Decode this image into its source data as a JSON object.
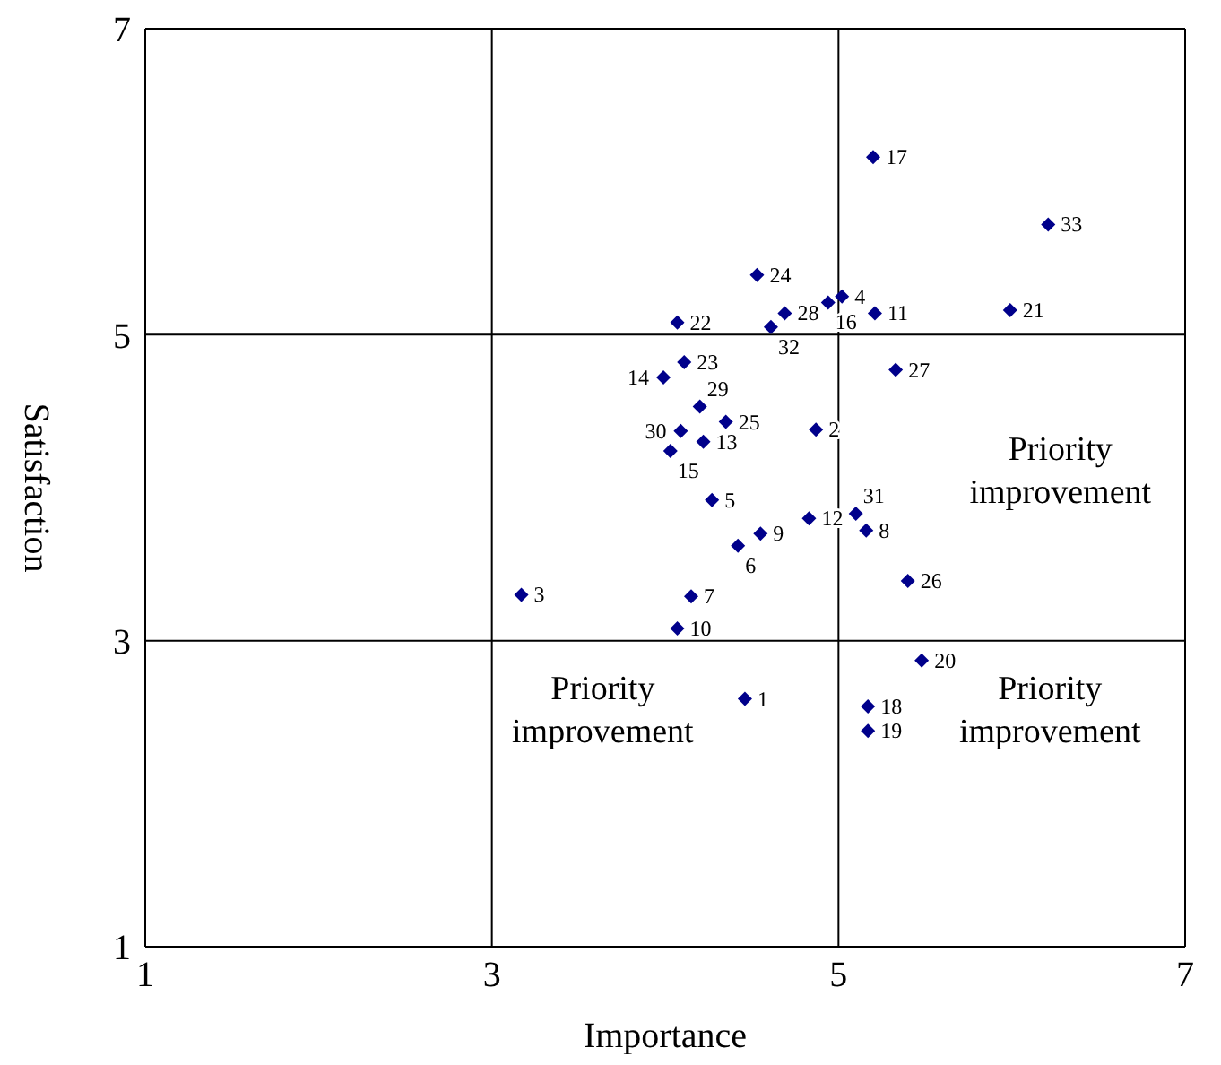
{
  "chart_data": {
    "type": "scatter",
    "xlabel": "Importance",
    "ylabel": "Satisfaction",
    "xlim": [
      1,
      7
    ],
    "ylim": [
      1,
      7
    ],
    "xticks": [
      1,
      3,
      5,
      7
    ],
    "yticks": [
      1,
      3,
      5,
      7
    ],
    "grid": true,
    "marker": "diamond",
    "series": [
      {
        "color": "#00008b",
        "x": [
          4.46,
          4.87,
          3.17,
          5.02,
          4.27,
          4.42,
          4.15,
          5.16,
          4.55,
          4.07,
          5.21,
          4.83,
          4.22,
          3.99,
          4.03,
          4.94,
          5.2,
          5.17,
          5.17,
          5.48,
          5.99,
          4.07,
          4.11,
          4.53,
          4.35,
          5.4,
          5.33,
          4.69,
          4.2,
          4.09,
          5.1,
          4.61,
          6.21
        ],
        "values": [
          2.62,
          4.38,
          3.3,
          5.25,
          3.92,
          3.62,
          3.29,
          3.72,
          3.7,
          3.08,
          5.14,
          3.8,
          4.3,
          4.72,
          4.24,
          5.21,
          6.16,
          2.57,
          2.41,
          2.87,
          5.16,
          5.08,
          4.82,
          5.39,
          4.43,
          3.39,
          4.77,
          5.14,
          4.53,
          4.37,
          3.83,
          5.05,
          5.72
        ]
      }
    ],
    "annotations": [
      "Priority improvement",
      "Priority improvement",
      "Priority improvement",
      {
        "text": "1",
        "x": 4.46,
        "y": 2.62
      },
      {
        "text": "2",
        "x": 4.87,
        "y": 4.38
      },
      {
        "text": "3",
        "x": 3.17,
        "y": 3.3
      },
      {
        "text": "4",
        "x": 5.02,
        "y": 5.25
      },
      {
        "text": "5",
        "x": 4.27,
        "y": 3.92
      },
      {
        "text": "6",
        "x": 4.42,
        "y": 3.62
      },
      {
        "text": "7",
        "x": 4.15,
        "y": 3.29
      },
      {
        "text": "8",
        "x": 5.16,
        "y": 3.72
      },
      {
        "text": "9",
        "x": 4.55,
        "y": 3.7
      },
      {
        "text": "10",
        "x": 4.07,
        "y": 3.08
      },
      {
        "text": "11",
        "x": 5.21,
        "y": 5.14
      },
      {
        "text": "12",
        "x": 4.83,
        "y": 3.8
      },
      {
        "text": "13",
        "x": 4.22,
        "y": 4.3
      },
      {
        "text": "14",
        "x": 3.99,
        "y": 4.72
      },
      {
        "text": "15",
        "x": 4.03,
        "y": 4.24
      },
      {
        "text": "16",
        "x": 4.94,
        "y": 5.21
      },
      {
        "text": "17",
        "x": 5.2,
        "y": 6.16
      },
      {
        "text": "18",
        "x": 5.17,
        "y": 2.57
      },
      {
        "text": "19",
        "x": 5.17,
        "y": 2.41
      },
      {
        "text": "20",
        "x": 5.48,
        "y": 2.87
      },
      {
        "text": "21",
        "x": 5.99,
        "y": 5.16
      },
      {
        "text": "22",
        "x": 4.07,
        "y": 5.08
      },
      {
        "text": "23",
        "x": 4.11,
        "y": 4.82
      },
      {
        "text": "24",
        "x": 4.53,
        "y": 5.39
      },
      {
        "text": "25",
        "x": 4.35,
        "y": 4.43
      },
      {
        "text": "26",
        "x": 5.4,
        "y": 3.39
      },
      {
        "text": "27",
        "x": 5.33,
        "y": 4.77
      },
      {
        "text": "28",
        "x": 4.69,
        "y": 5.14
      },
      {
        "text": "29",
        "x": 4.2,
        "y": 4.53
      },
      {
        "text": "30",
        "x": 4.09,
        "y": 4.37
      },
      {
        "text": "31",
        "x": 5.1,
        "y": 3.83
      },
      {
        "text": "32",
        "x": 4.61,
        "y": 5.05
      },
      {
        "text": "33",
        "x": 6.21,
        "y": 5.72
      }
    ]
  }
}
